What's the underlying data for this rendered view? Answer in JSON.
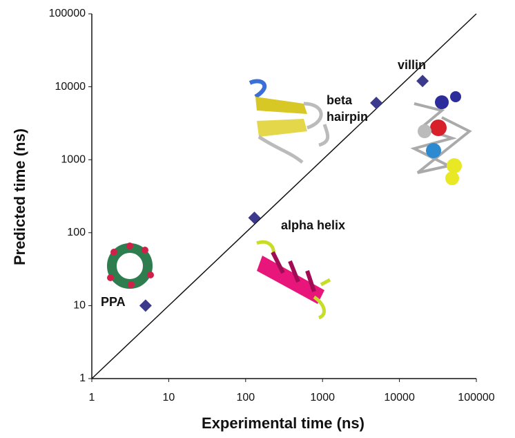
{
  "chart_data": {
    "type": "scatter",
    "x_label": "Experimental time (ns)",
    "y_label": "Predicted time (ns)",
    "x": [
      5,
      130,
      5000,
      20000
    ],
    "values": [
      10,
      160,
      6000,
      12000
    ],
    "color": "#3b3a8c",
    "xlim": [
      1,
      100000
    ],
    "ylim": [
      1,
      100000
    ],
    "xticks": [
      1,
      10,
      100,
      1000,
      10000,
      100000
    ],
    "yticks": [
      1,
      10,
      100,
      1000,
      10000,
      100000
    ],
    "log_x": true,
    "log_y": true,
    "grid": false,
    "annotations": [
      {
        "lines": [
          "PPA"
        ]
      },
      {
        "lines": [
          "alpha helix"
        ]
      },
      {
        "lines": [
          "beta",
          "hairpin"
        ]
      },
      {
        "lines": [
          "villin"
        ]
      }
    ]
  }
}
